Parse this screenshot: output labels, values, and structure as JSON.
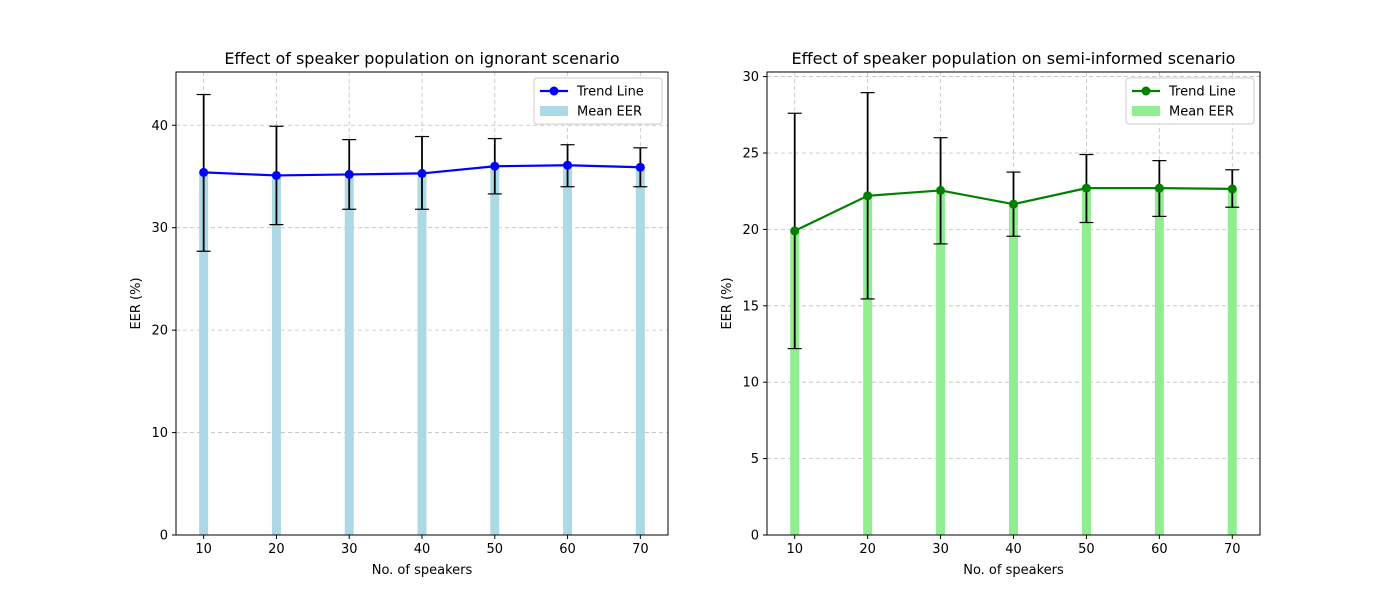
{
  "chart_data": [
    {
      "type": "bar",
      "title": "Effect of speaker population on ignorant scenario",
      "xlabel": "No. of speakers",
      "ylabel": "EER (%)",
      "x": [
        10,
        20,
        30,
        40,
        50,
        60,
        70
      ],
      "x_tick_labels": [
        "10",
        "20",
        "30",
        "40",
        "50",
        "60",
        "70"
      ],
      "xlim": [
        6.2,
        73.8
      ],
      "ylim": [
        0,
        45.2
      ],
      "y_ticks": [
        0,
        10,
        20,
        30,
        40
      ],
      "y_tick_labels": [
        "0",
        "10",
        "20",
        "30",
        "40"
      ],
      "grid": true,
      "legend_position": "top-right",
      "series": [
        {
          "name": "Trend Line",
          "kind": "line",
          "color": "#0000ff",
          "values": [
            35.4,
            35.1,
            35.2,
            35.3,
            36.0,
            36.1,
            35.9
          ]
        },
        {
          "name": "Mean EER",
          "kind": "bar",
          "color": "#add8e6",
          "values": [
            35.4,
            35.1,
            35.2,
            35.3,
            36.0,
            36.1,
            35.9
          ]
        }
      ],
      "error_bars": {
        "lower": [
          27.7,
          30.3,
          31.8,
          31.8,
          33.3,
          34.0,
          34.0
        ],
        "upper": [
          43.0,
          39.9,
          38.6,
          38.9,
          38.7,
          38.1,
          37.8
        ]
      }
    },
    {
      "type": "bar",
      "title": "Effect of speaker population on semi-informed scenario",
      "xlabel": "No. of speakers",
      "ylabel": "EER (%)",
      "x": [
        10,
        20,
        30,
        40,
        50,
        60,
        70
      ],
      "x_tick_labels": [
        "10",
        "20",
        "30",
        "40",
        "50",
        "60",
        "70"
      ],
      "xlim": [
        6.2,
        73.8
      ],
      "ylim": [
        0,
        30.3
      ],
      "y_ticks": [
        0,
        5,
        10,
        15,
        20,
        25,
        30
      ],
      "y_tick_labels": [
        "0",
        "5",
        "10",
        "15",
        "20",
        "25",
        "30"
      ],
      "grid": true,
      "legend_position": "top-right",
      "series": [
        {
          "name": "Trend Line",
          "kind": "line",
          "color": "#008000",
          "values": [
            19.9,
            22.2,
            22.55,
            21.65,
            22.7,
            22.7,
            22.65
          ]
        },
        {
          "name": "Mean EER",
          "kind": "bar",
          "color": "#90ee90",
          "values": [
            19.9,
            22.2,
            22.55,
            21.65,
            22.7,
            22.7,
            22.65
          ]
        }
      ],
      "error_bars": {
        "lower": [
          12.2,
          15.45,
          19.05,
          19.55,
          20.45,
          20.85,
          21.45
        ],
        "upper": [
          27.6,
          28.95,
          26.0,
          23.75,
          24.9,
          24.5,
          23.9
        ]
      }
    }
  ]
}
